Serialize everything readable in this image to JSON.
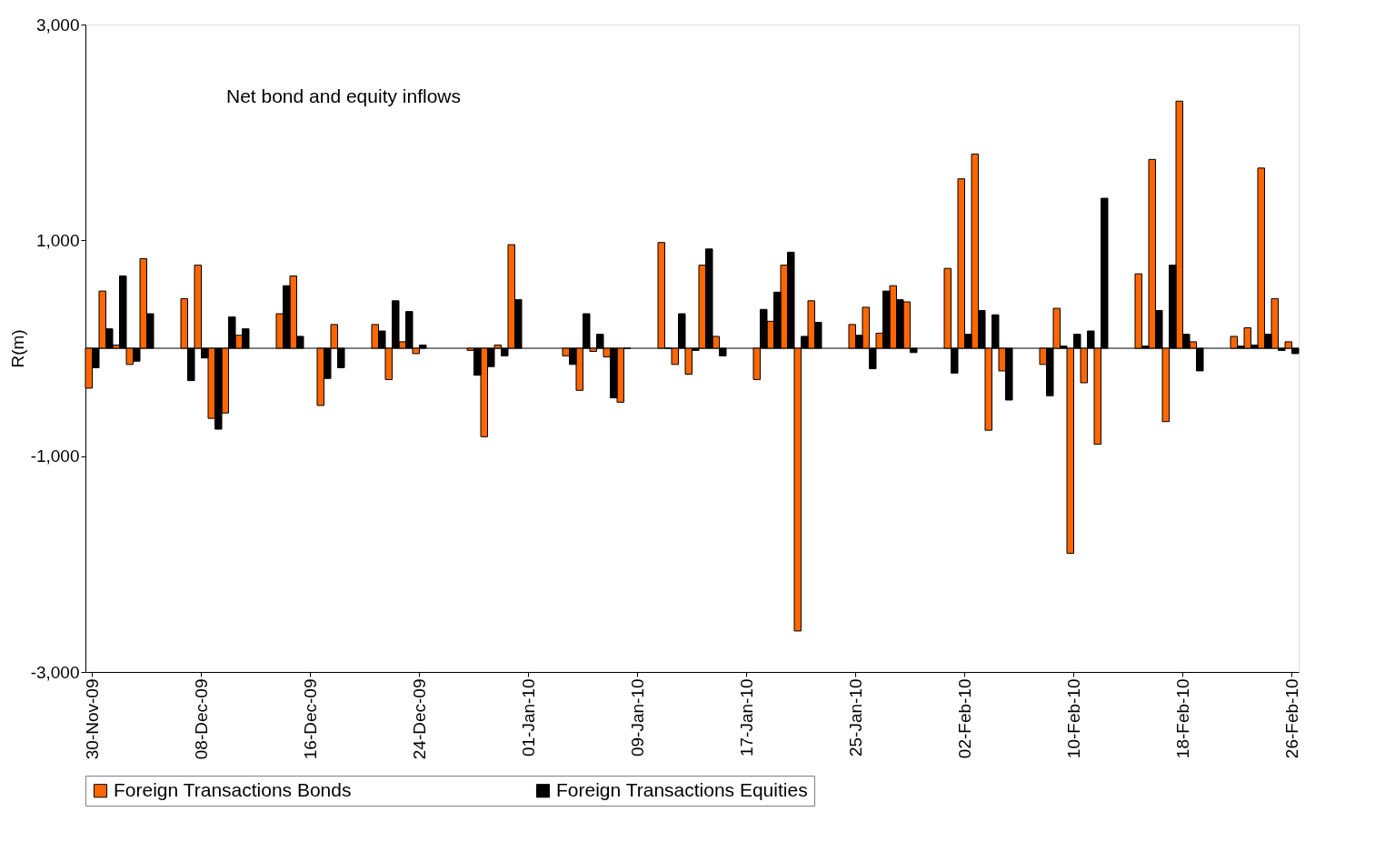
{
  "chart_data": {
    "type": "bar",
    "title": "Net bond and equity inflows",
    "ylabel": "R(m)",
    "categories": [
      "30-Nov-09",
      null,
      null,
      null,
      null,
      null,
      null,
      null,
      "08-Dec-09",
      null,
      null,
      null,
      null,
      null,
      null,
      null,
      "16-Dec-09",
      null,
      null,
      null,
      null,
      null,
      null,
      null,
      "24-Dec-09",
      null,
      null,
      null,
      null,
      null,
      null,
      null,
      "01-Jan-10",
      null,
      null,
      null,
      null,
      null,
      null,
      null,
      "09-Jan-10",
      null,
      null,
      null,
      null,
      null,
      null,
      null,
      "17-Jan-10",
      null,
      null,
      null,
      null,
      null,
      null,
      null,
      "25-Jan-10",
      null,
      null,
      null,
      null,
      null,
      null,
      null,
      "02-Feb-10",
      null,
      null,
      null,
      null,
      null,
      null,
      null,
      "10-Feb-10",
      null,
      null,
      null,
      null,
      null,
      null,
      null,
      "18-Feb-10",
      null,
      null,
      null,
      null,
      null,
      null,
      null,
      "26-Feb-10"
    ],
    "series": [
      {
        "name": "Foreign Transactions Bonds",
        "color": "#ff6600",
        "values": [
          -370,
          530,
          30,
          -150,
          830,
          null,
          null,
          460,
          770,
          -650,
          -600,
          120,
          null,
          null,
          320,
          670,
          null,
          -530,
          220,
          null,
          null,
          220,
          -290,
          60,
          -50,
          null,
          null,
          null,
          -20,
          -820,
          30,
          960,
          null,
          null,
          null,
          -70,
          -390,
          -30,
          -80,
          -500,
          null,
          null,
          980,
          -150,
          -240,
          770,
          110,
          null,
          null,
          -290,
          250,
          770,
          -2620,
          440,
          null,
          null,
          220,
          380,
          140,
          580,
          430,
          null,
          null,
          740,
          1570,
          1800,
          -760,
          -210,
          null,
          null,
          -150,
          370,
          -1900,
          -320,
          -890,
          null,
          null,
          690,
          1750,
          -680,
          2290,
          60,
          null,
          null,
          110,
          190,
          1670,
          460,
          60
        ]
      },
      {
        "name": "Foreign Transactions Equities",
        "color": "#000000",
        "values": [
          -180,
          180,
          670,
          -120,
          320,
          null,
          null,
          -300,
          -90,
          -750,
          290,
          180,
          null,
          null,
          580,
          110,
          null,
          -280,
          -180,
          null,
          null,
          160,
          440,
          340,
          30,
          null,
          null,
          null,
          -250,
          -170,
          -70,
          450,
          null,
          null,
          null,
          -150,
          320,
          130,
          -460,
          0,
          null,
          null,
          0,
          320,
          -20,
          920,
          -70,
          null,
          null,
          360,
          520,
          890,
          110,
          240,
          null,
          null,
          120,
          -190,
          530,
          450,
          -40,
          null,
          null,
          -230,
          130,
          350,
          310,
          -480,
          null,
          null,
          -440,
          20,
          130,
          160,
          1390,
          null,
          null,
          20,
          350,
          770,
          130,
          -210,
          null,
          null,
          20,
          30,
          130,
          -20,
          -50
        ]
      }
    ],
    "ylim": [
      -3000,
      3000
    ],
    "yticks": [
      {
        "value": 3000,
        "label": "3,000"
      },
      {
        "value": 1000,
        "label": "1,000"
      },
      {
        "value": -1000,
        "label": "-1,000"
      },
      {
        "value": -3000,
        "label": "-3,000"
      }
    ],
    "grid": false,
    "legend": "bottom"
  }
}
